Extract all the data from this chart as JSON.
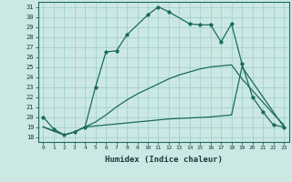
{
  "xlabel": "Humidex (Indice chaleur)",
  "bg_color": "#cce8e4",
  "grid_color": "#99cccc",
  "line_color": "#1a6b5a",
  "xlim": [
    -0.5,
    23.5
  ],
  "ylim": [
    17.5,
    31.5
  ],
  "line1_x": [
    0,
    1,
    2,
    3,
    4,
    5,
    6,
    7,
    8,
    10,
    11,
    12,
    14,
    15,
    16,
    17,
    18,
    19,
    20,
    21,
    22,
    23
  ],
  "line1_y": [
    20.0,
    18.8,
    18.2,
    18.5,
    19.0,
    23.0,
    26.5,
    26.6,
    28.2,
    30.2,
    31.0,
    30.5,
    29.3,
    29.2,
    29.2,
    27.5,
    29.3,
    25.3,
    22.0,
    20.5,
    19.2,
    19.0
  ],
  "line2_x": [
    0,
    2,
    3,
    4,
    5,
    6,
    7,
    8,
    9,
    10,
    11,
    12,
    13,
    14,
    15,
    16,
    17,
    18,
    19,
    22,
    23
  ],
  "line2_y": [
    19.0,
    18.2,
    18.5,
    19.0,
    19.5,
    20.2,
    21.0,
    21.7,
    22.3,
    22.8,
    23.3,
    23.8,
    24.2,
    24.5,
    24.8,
    25.0,
    25.1,
    25.2,
    23.8,
    20.3,
    19.2
  ],
  "line3_x": [
    0,
    2,
    3,
    4,
    5,
    6,
    7,
    8,
    9,
    10,
    11,
    12,
    13,
    14,
    15,
    16,
    17,
    18,
    19,
    23
  ],
  "line3_y": [
    19.0,
    18.2,
    18.5,
    19.0,
    19.1,
    19.2,
    19.3,
    19.4,
    19.5,
    19.6,
    19.7,
    19.8,
    19.85,
    19.9,
    19.95,
    20.0,
    20.1,
    20.2,
    25.0,
    19.0
  ],
  "tick_fontsize": 5,
  "xlabel_fontsize": 6.5
}
